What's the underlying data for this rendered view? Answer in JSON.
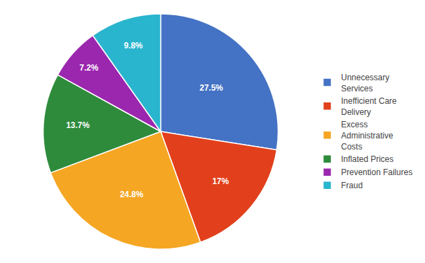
{
  "chart_data": {
    "type": "pie",
    "categories": [
      "Unnecessary\nServices",
      "Inefficient Care\nDelivery",
      "Excess\nAdministrative\nCosts",
      "Inflated Prices",
      "Prevention Failures",
      "Fraud"
    ],
    "values": [
      27.5,
      17,
      24.8,
      13.7,
      7.2,
      9.8
    ],
    "value_labels": [
      "27.5%",
      "17%",
      "24.8%",
      "13.7%",
      "7.2%",
      "9.8%"
    ],
    "colors": [
      "#4472C4",
      "#E2401C",
      "#F5A623",
      "#2E8B3C",
      "#9B27AF",
      "#29B5CE"
    ],
    "data_labels": true,
    "legend": "right"
  }
}
